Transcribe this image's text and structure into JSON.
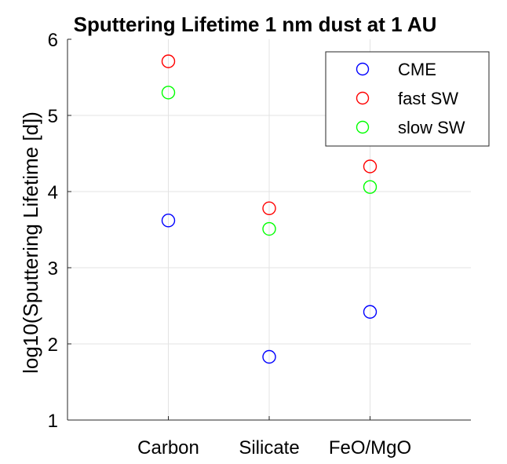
{
  "chart_data": {
    "type": "scatter",
    "title": "Sputtering Lifetime 1 nm dust at 1 AU",
    "xlabel": "",
    "ylabel": "log10(Sputtering Lifetime [d])",
    "categories": [
      "Carbon",
      "Silicate",
      "FeO/MgO"
    ],
    "ylim": [
      1,
      6
    ],
    "yticks": [
      1,
      2,
      3,
      4,
      5,
      6
    ],
    "grid": true,
    "legend_position": "top-right",
    "marker": "open-circle",
    "series": [
      {
        "name": "CME",
        "color": "#0000ff",
        "values": [
          3.62,
          1.83,
          2.42
        ]
      },
      {
        "name": "fast SW",
        "color": "#ff0000",
        "values": [
          5.71,
          3.78,
          4.33
        ]
      },
      {
        "name": "slow SW",
        "color": "#00ff00",
        "values": [
          5.3,
          3.51,
          4.06
        ]
      }
    ]
  }
}
